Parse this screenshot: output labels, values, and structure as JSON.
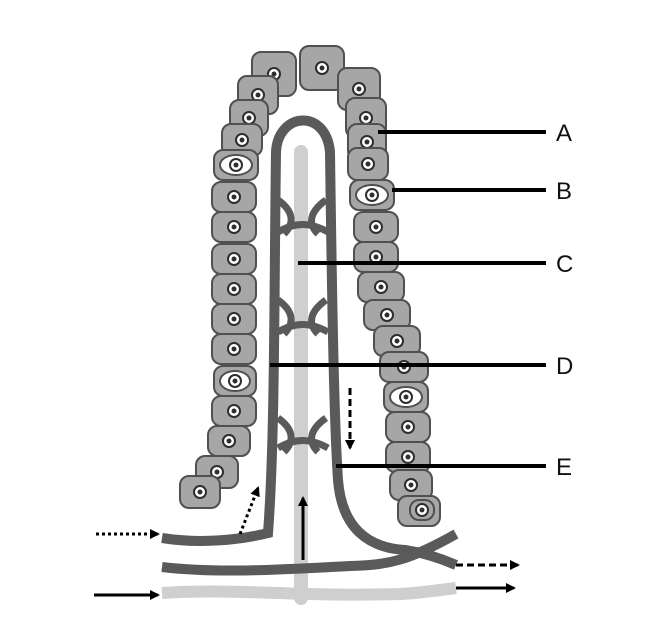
{
  "labels": {
    "A": "A",
    "B": "B",
    "C": "C",
    "D": "D",
    "E": "E"
  },
  "colors": {
    "cell_fill": "#a6a6a6",
    "cell_stroke": "#505050",
    "nucleus": "#2e2e2e",
    "vessel_dark": "#5a5a5a",
    "lacteal_light": "#cfcfcf",
    "goblet_fill": "#ffffff",
    "arrow": "#000000"
  }
}
